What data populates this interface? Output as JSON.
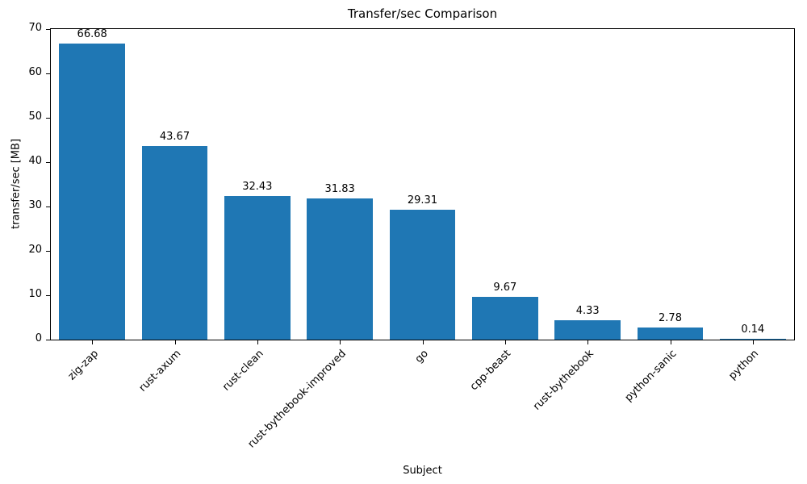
{
  "chart_data": {
    "type": "bar",
    "title": "Transfer/sec Comparison",
    "xlabel": "Subject",
    "ylabel": "transfer/sec [MB]",
    "categories": [
      "zig-zap",
      "rust-axum",
      "rust-clean",
      "rust-bythebook-improved",
      "go",
      "cpp-beast",
      "rust-bythebook",
      "python-sanic",
      "python"
    ],
    "values": [
      66.68,
      43.67,
      32.43,
      31.83,
      29.31,
      9.67,
      4.33,
      2.78,
      0.14
    ],
    "value_labels": [
      "66.68",
      "43.67",
      "32.43",
      "31.83",
      "29.31",
      "9.67",
      "4.33",
      "2.78",
      "0.14"
    ],
    "ylim": [
      0,
      70
    ],
    "yticks": [
      0,
      10,
      20,
      30,
      40,
      50,
      60,
      70
    ],
    "bar_color": "#1f77b4",
    "axis_color": "#000000",
    "grid": false,
    "legend": null,
    "x_tick_rotation_deg": 45
  }
}
